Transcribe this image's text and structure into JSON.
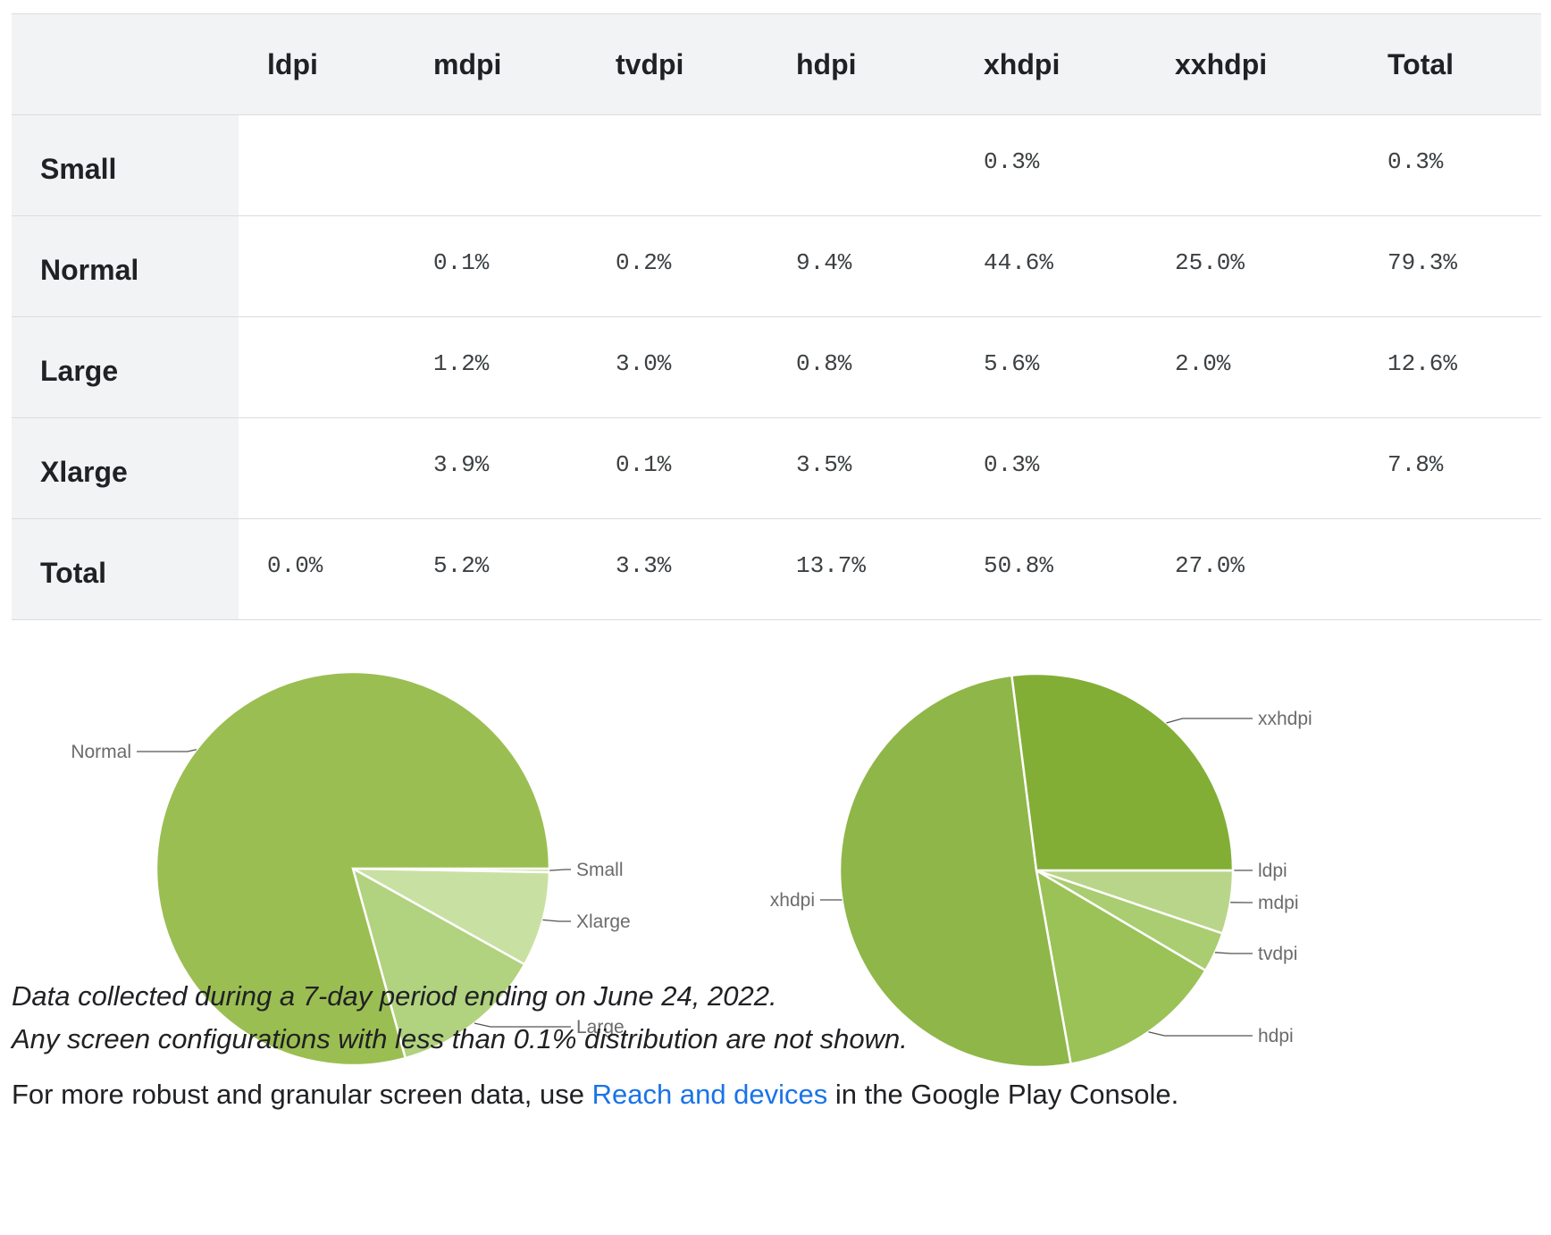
{
  "table": {
    "columns": [
      "",
      "ldpi",
      "mdpi",
      "tvdpi",
      "hdpi",
      "xhdpi",
      "xxhdpi",
      "Total"
    ],
    "rows": [
      {
        "label": "Small",
        "cells": [
          "",
          "",
          "",
          "",
          "0.3%",
          "",
          "0.3%"
        ]
      },
      {
        "label": "Normal",
        "cells": [
          "",
          "0.1%",
          "0.2%",
          "9.4%",
          "44.6%",
          "25.0%",
          "79.3%"
        ]
      },
      {
        "label": "Large",
        "cells": [
          "",
          "1.2%",
          "3.0%",
          "0.8%",
          "5.6%",
          "2.0%",
          "12.6%"
        ]
      },
      {
        "label": "Xlarge",
        "cells": [
          "",
          "3.9%",
          "0.1%",
          "3.5%",
          "0.3%",
          "",
          "7.8%"
        ]
      },
      {
        "label": "Total",
        "cells": [
          "0.0%",
          "5.2%",
          "3.3%",
          "13.7%",
          "50.8%",
          "27.0%",
          ""
        ]
      }
    ]
  },
  "chart_data": [
    {
      "type": "pie",
      "categories": [
        "Small",
        "Xlarge",
        "Large",
        "Normal"
      ],
      "values": [
        0.3,
        7.8,
        12.6,
        79.3
      ],
      "colors": [
        "#c4dc9b",
        "#c9e0a3",
        "#b1d27e",
        "#9bbe52"
      ],
      "start_angle": 0,
      "title": ""
    },
    {
      "type": "pie",
      "categories": [
        "ldpi",
        "mdpi",
        "tvdpi",
        "hdpi",
        "xhdpi",
        "xxhdpi"
      ],
      "values": [
        0.0,
        5.2,
        3.3,
        13.7,
        50.8,
        27.0
      ],
      "colors": [
        "#c1da96",
        "#b9d58a",
        "#a9cd70",
        "#9ac257",
        "#8fb648",
        "#82ae36"
      ],
      "start_angle": 0,
      "title": ""
    }
  ],
  "notes": {
    "line1": "Data collected during a 7-day period ending on June 24, 2022.",
    "line2": "Any screen configurations with less than 0.1% distribution are not shown."
  },
  "footer": {
    "before": "For more robust and granular screen data, use ",
    "link": "Reach and devices",
    "after": " in the Google Play Console."
  }
}
